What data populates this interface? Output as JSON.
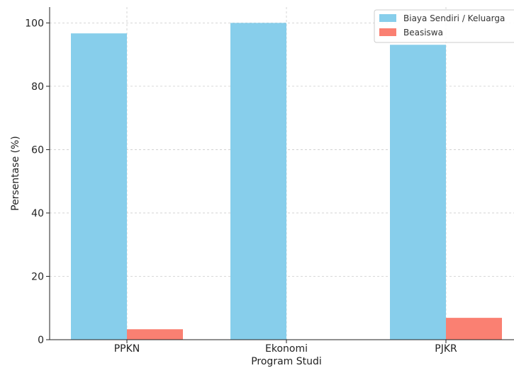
{
  "chart_data": {
    "type": "bar",
    "categories": [
      "PPKN",
      "Ekonomi",
      "PJKR"
    ],
    "series": [
      {
        "name": "Biaya Sendiri / Keluarga",
        "values": [
          96.7,
          100,
          93.1
        ],
        "color": "#87CEEB"
      },
      {
        "name": "Beasiswa",
        "values": [
          3.3,
          0,
          6.9
        ],
        "color": "#FA8072"
      }
    ],
    "xlabel": "Program Studi",
    "ylabel": "Persentase (%)",
    "ylim": [
      0,
      105
    ],
    "yticks": [
      0,
      20,
      40,
      60,
      80,
      100
    ],
    "grid": true,
    "legend_position": "top-right"
  }
}
